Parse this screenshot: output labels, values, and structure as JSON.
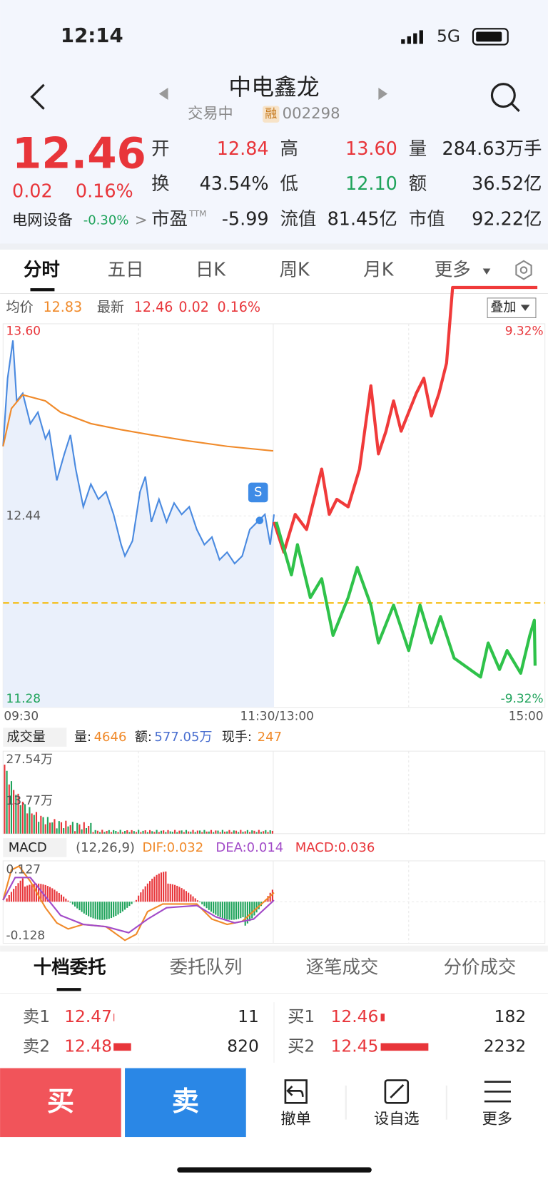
{
  "status_bar": {
    "time": "12:14",
    "network": "5G"
  },
  "header": {
    "title": "中电鑫龙",
    "status": "交易中",
    "badge": "融",
    "code": "002298"
  },
  "quote": {
    "price": "12.46",
    "change": "0.02",
    "change_pct": "0.16%",
    "sector": "电网设备",
    "sector_change": "-0.30%",
    "fields": [
      {
        "label": "开",
        "value": "12.84"
      },
      {
        "label": "高",
        "value": "13.60"
      },
      {
        "label": "量",
        "value": "284.63万手"
      },
      {
        "label": "换",
        "value": "43.54%"
      },
      {
        "label": "低",
        "value": "12.10"
      },
      {
        "label": "额",
        "value": "36.52亿"
      },
      {
        "label": "市盈",
        "sup": "TTM",
        "value": "-5.99"
      },
      {
        "label": "流值",
        "value": "81.45亿"
      },
      {
        "label": "市值",
        "value": "92.22亿"
      }
    ]
  },
  "tabs": [
    "分时",
    "五日",
    "日K",
    "周K",
    "月K",
    "更多"
  ],
  "chart_info": {
    "avg_label": "均价",
    "avg": "12.83",
    "latest_label": "最新",
    "latest": "12.46",
    "change": "0.02",
    "change_pct": "0.16%",
    "overlay": "叠加"
  },
  "price_axis": {
    "high": "13.60",
    "mid": "12.44",
    "low": "11.28",
    "high_pct": "9.32%",
    "low_pct": "-9.32%"
  },
  "time_axis": [
    "09:30",
    "11:30/13:00",
    "15:00"
  ],
  "signal": "S",
  "volume": {
    "selector": "成交量",
    "vol_label": "量:",
    "vol": "4646",
    "amt_label": "额:",
    "amt": "577.05万",
    "hand_label": "现手:",
    "hand": "247",
    "max": "27.54万",
    "mid": "13.77万"
  },
  "macd": {
    "selector": "MACD",
    "params": "(12,26,9)",
    "dif": "DIF:0.032",
    "dea": "DEA:0.014",
    "macd": "MACD:0.036",
    "max": "0.127",
    "min": "-0.128"
  },
  "order_tabs": [
    "十档委托",
    "委托队列",
    "逐笔成交",
    "分价成交"
  ],
  "asks": [
    {
      "label": "卖1",
      "price": "12.47",
      "qty": "11"
    },
    {
      "label": "卖2",
      "price": "12.48",
      "qty": "820"
    }
  ],
  "bids": [
    {
      "label": "买1",
      "price": "12.46",
      "qty": "182"
    },
    {
      "label": "买2",
      "price": "12.45",
      "qty": "2232"
    }
  ],
  "actions": {
    "buy": "买",
    "sell": "卖",
    "cancel": "撤单",
    "watch": "设自选",
    "more": "更多"
  }
}
